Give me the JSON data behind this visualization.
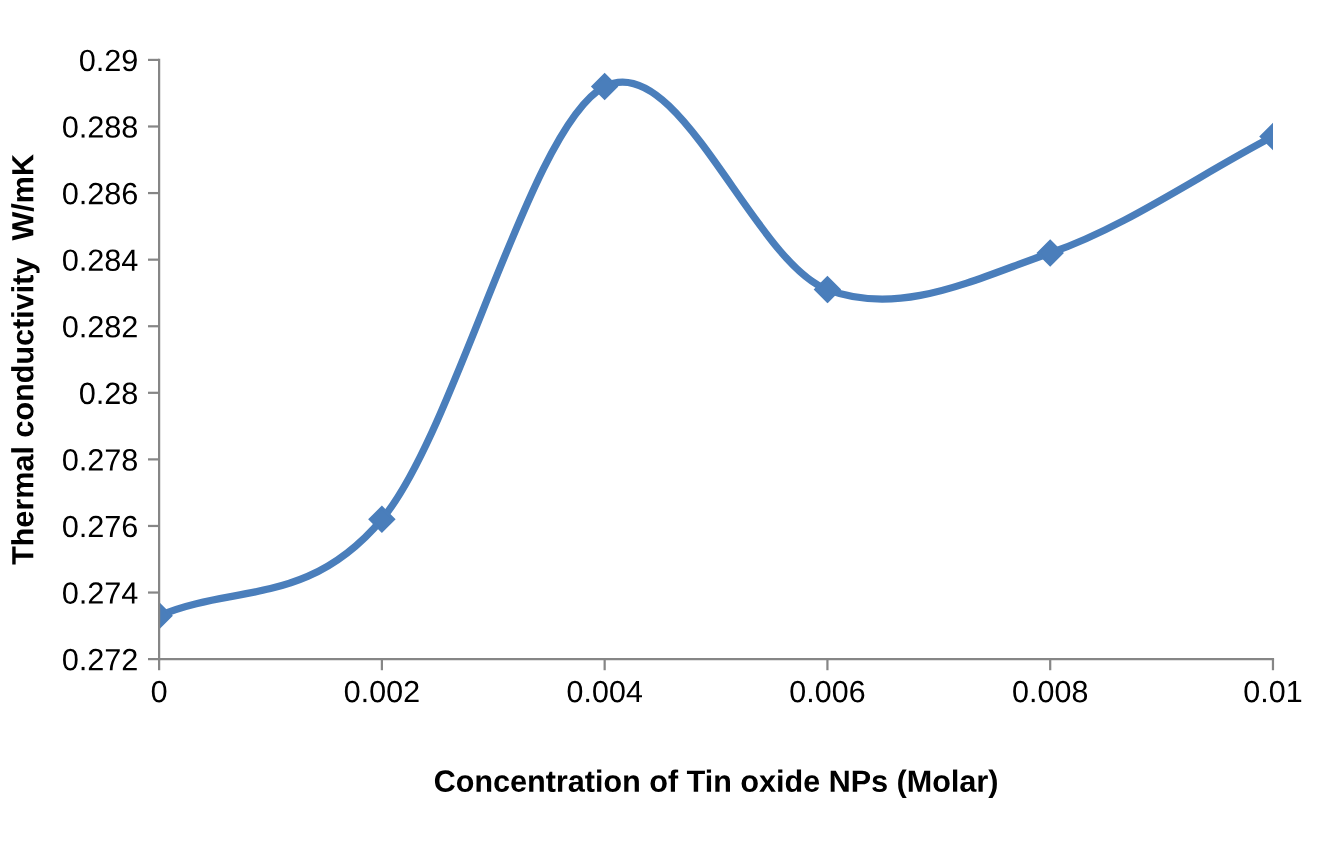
{
  "chart_data": {
    "type": "line",
    "xlabel": "Concentration of Tin oxide NPs (Molar)",
    "ylabel": "Thermal conductivity  W/mK",
    "x": [
      0,
      0.002,
      0.004,
      0.006,
      0.008,
      0.01
    ],
    "series": [
      {
        "color": "#4a7ebb",
        "values": [
          0.2733,
          0.2762,
          0.2892,
          0.2831,
          0.2842,
          0.2877
        ]
      }
    ],
    "xlim": [
      0,
      0.01
    ],
    "xticks": [
      0,
      0.002,
      0.004,
      0.006,
      0.008,
      0.01
    ],
    "ylim": [
      0.272,
      0.29
    ],
    "yticks": [
      0.272,
      0.274,
      0.276,
      0.278,
      0.28,
      0.282,
      0.284,
      0.286,
      0.288,
      0.29
    ],
    "grid": false,
    "legend": false,
    "marker": "diamond",
    "line_style": "solid"
  }
}
